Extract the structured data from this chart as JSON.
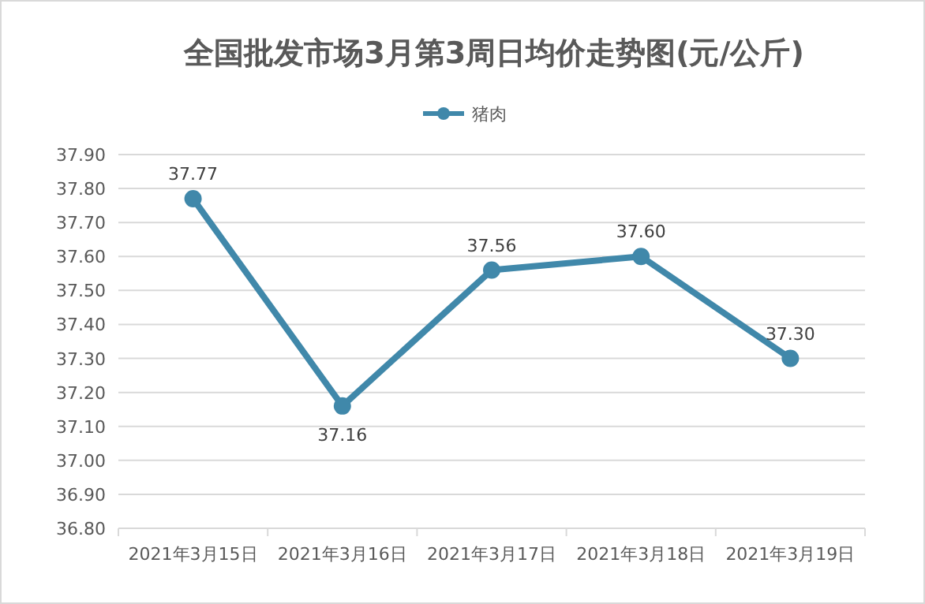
{
  "chart_data": {
    "type": "line",
    "title": "全国批发市场3月第3周日均价走势图(元/公斤)",
    "categories": [
      "2021年3月15日",
      "2021年3月16日",
      "2021年3月17日",
      "2021年3月18日",
      "2021年3月19日"
    ],
    "series": [
      {
        "name": "猪肉",
        "color": "#4088aa",
        "values": [
          37.77,
          37.16,
          37.56,
          37.6,
          37.3
        ],
        "value_labels": [
          "37.77",
          "37.16",
          "37.56",
          "37.60",
          "37.30"
        ]
      }
    ],
    "ylim": [
      36.8,
      37.9
    ],
    "yticks": [
      {
        "value": 36.8,
        "label": "36.80"
      },
      {
        "value": 36.9,
        "label": "36.90"
      },
      {
        "value": 37.0,
        "label": "37.00"
      },
      {
        "value": 37.1,
        "label": "37.10"
      },
      {
        "value": 37.2,
        "label": "37.20"
      },
      {
        "value": 37.3,
        "label": "37.30"
      },
      {
        "value": 37.4,
        "label": "37.40"
      },
      {
        "value": 37.5,
        "label": "37.50"
      },
      {
        "value": 37.6,
        "label": "37.60"
      },
      {
        "value": 37.7,
        "label": "37.70"
      },
      {
        "value": 37.8,
        "label": "37.80"
      },
      {
        "value": 37.9,
        "label": "37.90"
      }
    ],
    "grid": "y",
    "legend": "top",
    "marker": "circle",
    "line_style": "solid"
  }
}
